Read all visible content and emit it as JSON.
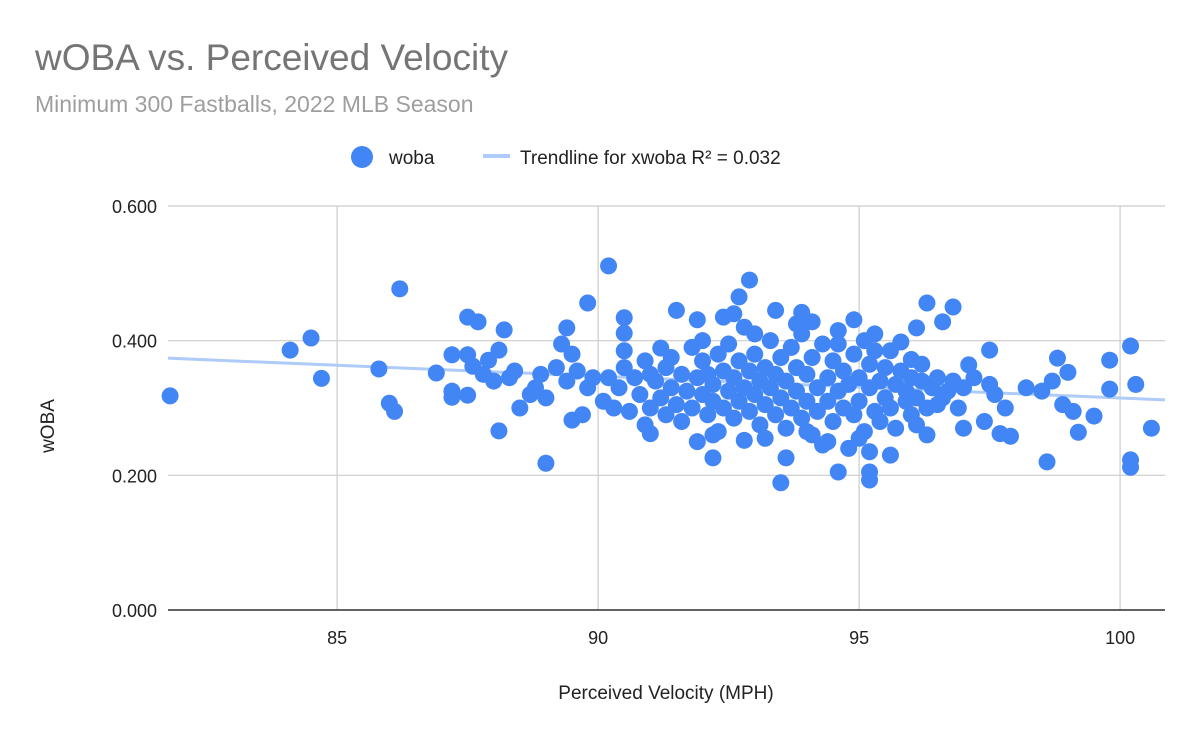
{
  "chart_data": {
    "type": "scatter",
    "title": "wOBA vs. Perceived Velocity",
    "subtitle": "Minimum 300 Fastballs, 2022 MLB Season",
    "xlabel": "Perceived Velocity (MPH)",
    "ylabel": "wOBA",
    "xlim": [
      81.76,
      100.86
    ],
    "ylim": [
      0,
      0.6
    ],
    "xticks": [
      "85",
      "90",
      "95",
      "100"
    ],
    "xtick_values": [
      85,
      90,
      95,
      100
    ],
    "yticks": [
      "0.000",
      "0.200",
      "0.400",
      "0.600"
    ],
    "ytick_values": [
      0,
      0.2,
      0.4,
      0.6
    ],
    "grid": true,
    "legend_placement": "top",
    "legend": {
      "series_label": "woba",
      "trend_label": "Trendline for xwoba R² = 0.032"
    },
    "colors": {
      "points": "#4285f4",
      "trendline": "#aecbfa",
      "grid": "#cccccc",
      "title": "#757575",
      "subtitle": "#9e9e9e"
    },
    "trendline": {
      "x": [
        81.76,
        100.86
      ],
      "y": [
        0.374,
        0.312
      ]
    },
    "series": [
      {
        "name": "woba",
        "points": [
          [
            81.8,
            0.318
          ],
          [
            84.1,
            0.386
          ],
          [
            84.5,
            0.404
          ],
          [
            84.7,
            0.344
          ],
          [
            85.8,
            0.358
          ],
          [
            86.0,
            0.307
          ],
          [
            86.1,
            0.295
          ],
          [
            86.2,
            0.477
          ],
          [
            86.9,
            0.352
          ],
          [
            87.2,
            0.379
          ],
          [
            87.2,
            0.325
          ],
          [
            87.2,
            0.316
          ],
          [
            87.5,
            0.435
          ],
          [
            87.7,
            0.428
          ],
          [
            87.5,
            0.379
          ],
          [
            87.6,
            0.362
          ],
          [
            87.5,
            0.319
          ],
          [
            88.1,
            0.266
          ],
          [
            88.2,
            0.416
          ],
          [
            88.1,
            0.386
          ],
          [
            87.9,
            0.371
          ],
          [
            89.0,
            0.218
          ],
          [
            90.2,
            0.511
          ],
          [
            89.8,
            0.456
          ],
          [
            89.4,
            0.419
          ],
          [
            89.5,
            0.282
          ],
          [
            89.7,
            0.29
          ],
          [
            90.5,
            0.434
          ],
          [
            90.5,
            0.411
          ],
          [
            90.9,
            0.275
          ],
          [
            91.2,
            0.389
          ],
          [
            91.5,
            0.445
          ],
          [
            91.9,
            0.431
          ],
          [
            92.2,
            0.226
          ],
          [
            92.4,
            0.435
          ],
          [
            92.7,
            0.465
          ],
          [
            92.9,
            0.49
          ],
          [
            92.8,
            0.252
          ],
          [
            93.5,
            0.189
          ],
          [
            93.6,
            0.226
          ],
          [
            93.4,
            0.445
          ],
          [
            93.9,
            0.442
          ],
          [
            94.1,
            0.428
          ],
          [
            94.6,
            0.205
          ],
          [
            94.9,
            0.431
          ],
          [
            95.2,
            0.235
          ],
          [
            95.2,
            0.205
          ],
          [
            95.2,
            0.193
          ],
          [
            95.6,
            0.23
          ],
          [
            96.3,
            0.456
          ],
          [
            96.8,
            0.45
          ],
          [
            96.6,
            0.428
          ],
          [
            96.1,
            0.419
          ],
          [
            97.1,
            0.364
          ],
          [
            97.5,
            0.386
          ],
          [
            98.6,
            0.22
          ],
          [
            98.8,
            0.374
          ],
          [
            99.0,
            0.353
          ],
          [
            99.2,
            0.264
          ],
          [
            99.5,
            0.288
          ],
          [
            99.8,
            0.371
          ],
          [
            99.8,
            0.328
          ],
          [
            100.2,
            0.392
          ],
          [
            100.3,
            0.335
          ],
          [
            100.2,
            0.223
          ],
          [
            100.2,
            0.212
          ],
          [
            100.6,
            0.27
          ],
          [
            97.0,
            0.27
          ],
          [
            97.4,
            0.28
          ],
          [
            97.7,
            0.262
          ],
          [
            97.9,
            0.258
          ],
          [
            97.8,
            0.3
          ],
          [
            98.2,
            0.33
          ],
          [
            98.5,
            0.325
          ],
          [
            98.7,
            0.34
          ],
          [
            98.9,
            0.305
          ],
          [
            99.1,
            0.295
          ],
          [
            97.6,
            0.32
          ],
          [
            96.9,
            0.3
          ],
          [
            96.5,
            0.305
          ],
          [
            96.2,
            0.34
          ],
          [
            96.0,
            0.372
          ],
          [
            95.8,
            0.398
          ],
          [
            95.9,
            0.31
          ],
          [
            96.3,
            0.26
          ],
          [
            96.1,
            0.275
          ],
          [
            90.1,
            0.31
          ],
          [
            90.3,
            0.3
          ],
          [
            90.4,
            0.33
          ],
          [
            90.5,
            0.36
          ],
          [
            90.6,
            0.295
          ],
          [
            90.7,
            0.345
          ],
          [
            90.8,
            0.32
          ],
          [
            90.9,
            0.37
          ],
          [
            91.0,
            0.3
          ],
          [
            91.0,
            0.262
          ],
          [
            91.1,
            0.34
          ],
          [
            91.2,
            0.315
          ],
          [
            91.3,
            0.29
          ],
          [
            91.3,
            0.36
          ],
          [
            91.4,
            0.33
          ],
          [
            91.5,
            0.305
          ],
          [
            91.6,
            0.35
          ],
          [
            91.6,
            0.28
          ],
          [
            91.7,
            0.325
          ],
          [
            91.8,
            0.39
          ],
          [
            91.8,
            0.3
          ],
          [
            91.9,
            0.345
          ],
          [
            92.0,
            0.32
          ],
          [
            92.0,
            0.37
          ],
          [
            92.1,
            0.29
          ],
          [
            92.1,
            0.35
          ],
          [
            92.2,
            0.31
          ],
          [
            92.2,
            0.335
          ],
          [
            92.3,
            0.38
          ],
          [
            92.3,
            0.265
          ],
          [
            92.4,
            0.3
          ],
          [
            92.4,
            0.355
          ],
          [
            92.5,
            0.325
          ],
          [
            92.5,
            0.395
          ],
          [
            92.6,
            0.285
          ],
          [
            92.6,
            0.345
          ],
          [
            92.7,
            0.31
          ],
          [
            92.7,
            0.37
          ],
          [
            92.8,
            0.33
          ],
          [
            92.8,
            0.42
          ],
          [
            92.9,
            0.295
          ],
          [
            92.9,
            0.355
          ],
          [
            93.0,
            0.32
          ],
          [
            93.0,
            0.38
          ],
          [
            93.1,
            0.275
          ],
          [
            93.1,
            0.34
          ],
          [
            93.2,
            0.305
          ],
          [
            93.2,
            0.36
          ],
          [
            93.3,
            0.33
          ],
          [
            93.3,
            0.4
          ],
          [
            93.4,
            0.29
          ],
          [
            93.4,
            0.35
          ],
          [
            93.5,
            0.315
          ],
          [
            93.5,
            0.375
          ],
          [
            93.6,
            0.27
          ],
          [
            93.6,
            0.34
          ],
          [
            93.7,
            0.3
          ],
          [
            93.7,
            0.39
          ],
          [
            93.8,
            0.325
          ],
          [
            93.8,
            0.36
          ],
          [
            93.9,
            0.285
          ],
          [
            93.9,
            0.41
          ],
          [
            94.0,
            0.31
          ],
          [
            94.0,
            0.35
          ],
          [
            94.1,
            0.26
          ],
          [
            94.1,
            0.375
          ],
          [
            94.2,
            0.33
          ],
          [
            94.2,
            0.295
          ],
          [
            94.3,
            0.395
          ],
          [
            94.3,
            0.245
          ],
          [
            94.4,
            0.345
          ],
          [
            94.4,
            0.31
          ],
          [
            94.5,
            0.37
          ],
          [
            94.5,
            0.28
          ],
          [
            94.6,
            0.325
          ],
          [
            94.6,
            0.415
          ],
          [
            94.7,
            0.3
          ],
          [
            94.7,
            0.355
          ],
          [
            94.8,
            0.24
          ],
          [
            94.8,
            0.335
          ],
          [
            94.9,
            0.38
          ],
          [
            94.9,
            0.29
          ],
          [
            95.0,
            0.345
          ],
          [
            95.0,
            0.31
          ],
          [
            95.1,
            0.4
          ],
          [
            95.1,
            0.265
          ],
          [
            95.2,
            0.33
          ],
          [
            95.2,
            0.365
          ],
          [
            95.3,
            0.295
          ],
          [
            95.3,
            0.41
          ],
          [
            95.4,
            0.34
          ],
          [
            95.4,
            0.28
          ],
          [
            95.5,
            0.36
          ],
          [
            95.5,
            0.315
          ],
          [
            95.6,
            0.385
          ],
          [
            95.6,
            0.3
          ],
          [
            95.7,
            0.335
          ],
          [
            95.7,
            0.27
          ],
          [
            95.8,
            0.355
          ],
          [
            95.9,
            0.325
          ],
          [
            96.0,
            0.29
          ],
          [
            96.0,
            0.345
          ],
          [
            96.1,
            0.315
          ],
          [
            96.2,
            0.365
          ],
          [
            96.3,
            0.3
          ],
          [
            96.4,
            0.33
          ],
          [
            96.5,
            0.345
          ],
          [
            96.6,
            0.315
          ],
          [
            96.7,
            0.325
          ],
          [
            96.8,
            0.34
          ],
          [
            97.0,
            0.33
          ],
          [
            97.2,
            0.345
          ],
          [
            97.5,
            0.335
          ],
          [
            89.2,
            0.36
          ],
          [
            89.4,
            0.34
          ],
          [
            89.5,
            0.38
          ],
          [
            89.6,
            0.355
          ],
          [
            89.8,
            0.33
          ],
          [
            89.9,
            0.345
          ],
          [
            89.3,
            0.395
          ],
          [
            88.9,
            0.35
          ],
          [
            88.7,
            0.32
          ],
          [
            88.5,
            0.3
          ],
          [
            88.8,
            0.33
          ],
          [
            88.3,
            0.345
          ],
          [
            88.4,
            0.355
          ],
          [
            88.0,
            0.34
          ],
          [
            87.8,
            0.35
          ],
          [
            89.0,
            0.315
          ],
          [
            91.9,
            0.25
          ],
          [
            92.2,
            0.26
          ],
          [
            93.2,
            0.255
          ],
          [
            94.0,
            0.265
          ],
          [
            94.4,
            0.25
          ],
          [
            95.0,
            0.255
          ],
          [
            93.0,
            0.41
          ],
          [
            92.6,
            0.44
          ],
          [
            93.8,
            0.425
          ],
          [
            94.6,
            0.395
          ],
          [
            95.3,
            0.385
          ],
          [
            91.4,
            0.375
          ],
          [
            90.5,
            0.385
          ],
          [
            92.0,
            0.4
          ],
          [
            91.0,
            0.35
          ],
          [
            90.2,
            0.345
          ]
        ]
      }
    ]
  }
}
